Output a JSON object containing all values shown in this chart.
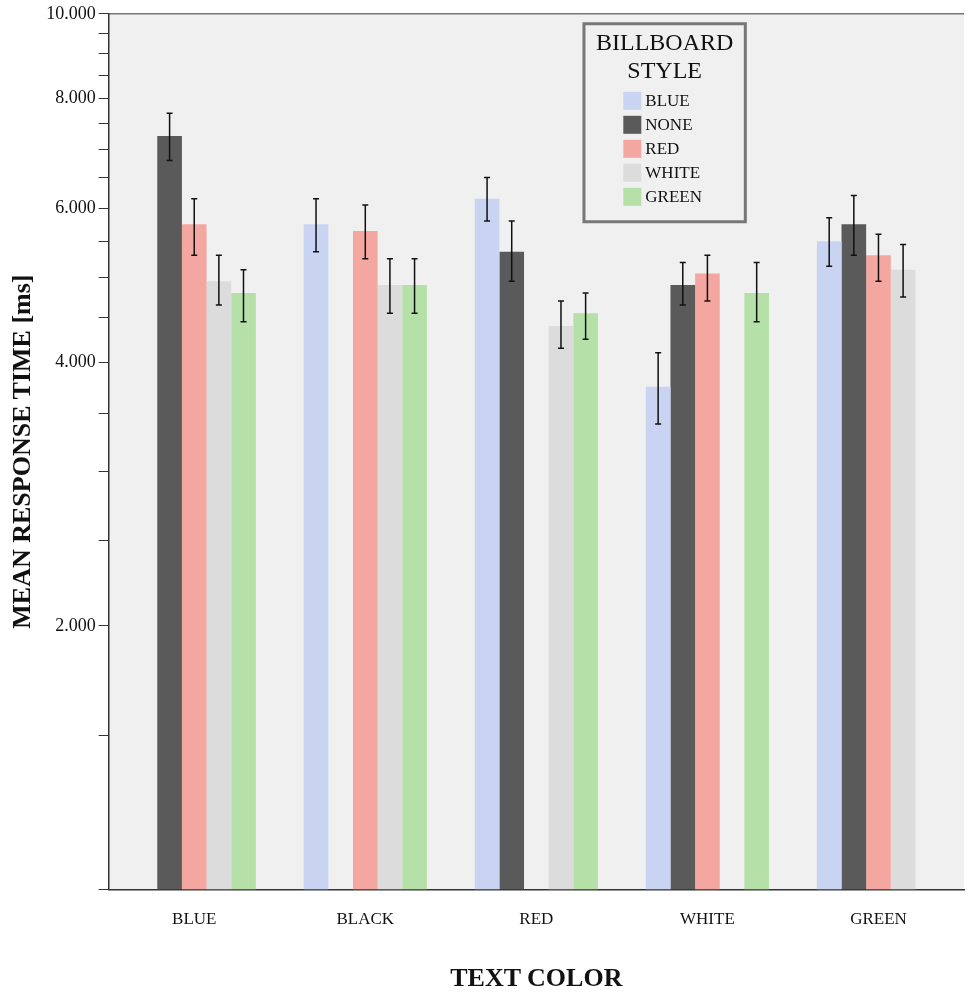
{
  "chart_data": {
    "type": "bar",
    "xlabel": "TEXT COLOR",
    "ylabel": "MEAN RESPONSE TIME [ms]",
    "legend_title": "BILLBOARD STYLE",
    "legend": "top",
    "log": true,
    "grid": false,
    "categories": [
      "BLUE",
      "BLACK",
      "RED",
      "WHITE",
      "GREEN"
    ],
    "ylim": [
      1000,
      10000
    ],
    "yticks": [
      {
        "value": 1000,
        "label": null
      },
      {
        "value": 1500,
        "label": null
      },
      {
        "value": 2000,
        "label": "2.000"
      },
      {
        "value": 2500,
        "label": null
      },
      {
        "value": 3000,
        "label": null
      },
      {
        "value": 3500,
        "label": null
      },
      {
        "value": 4000,
        "label": "4.000"
      },
      {
        "value": 4500,
        "label": null
      },
      {
        "value": 5000,
        "label": null
      },
      {
        "value": 5500,
        "label": null
      },
      {
        "value": 6000,
        "label": "6.000"
      },
      {
        "value": 6500,
        "label": null
      },
      {
        "value": 7000,
        "label": null
      },
      {
        "value": 7500,
        "label": null
      },
      {
        "value": 8000,
        "label": "8.000"
      },
      {
        "value": 8500,
        "label": null
      },
      {
        "value": 9000,
        "label": null
      },
      {
        "value": 9500,
        "label": null
      },
      {
        "value": 10000,
        "label": "10.000"
      }
    ],
    "series": [
      {
        "name": "BLUE",
        "color": "#c8d4f2",
        "values": [
          null,
          5750,
          6150,
          3750,
          5500
        ],
        "errors": [
          null,
          [
            5350,
            6150
          ],
          [
            5800,
            6500
          ],
          [
            3400,
            4100
          ],
          [
            5150,
            5850
          ]
        ]
      },
      {
        "name": "NONE",
        "color": "#5a5a5a",
        "values": [
          7250,
          null,
          5350,
          4900,
          5750
        ],
        "errors": [
          [
            6800,
            7700
          ],
          null,
          [
            4950,
            5800
          ],
          [
            4650,
            5200
          ],
          [
            5300,
            6200
          ]
        ]
      },
      {
        "name": "RED",
        "color": "#f4a7a0",
        "values": [
          5750,
          5650,
          null,
          5050,
          5300
        ],
        "errors": [
          [
            5300,
            6150
          ],
          [
            5250,
            6050
          ],
          null,
          [
            4700,
            5300
          ],
          [
            4950,
            5600
          ]
        ]
      },
      {
        "name": "WHITE",
        "color": "#dcdcdc",
        "values": [
          4950,
          4900,
          4400,
          null,
          5100
        ],
        "errors": [
          [
            4650,
            5300
          ],
          [
            4550,
            5250
          ],
          [
            4150,
            4700
          ],
          null,
          [
            4750,
            5450
          ]
        ]
      },
      {
        "name": "GREEN",
        "color": "#b5e0a8",
        "values": [
          4800,
          4900,
          4550,
          4800,
          null
        ],
        "errors": [
          [
            4450,
            5100
          ],
          [
            4550,
            5250
          ],
          [
            4250,
            4800
          ],
          [
            4450,
            5200
          ],
          null
        ]
      }
    ]
  }
}
